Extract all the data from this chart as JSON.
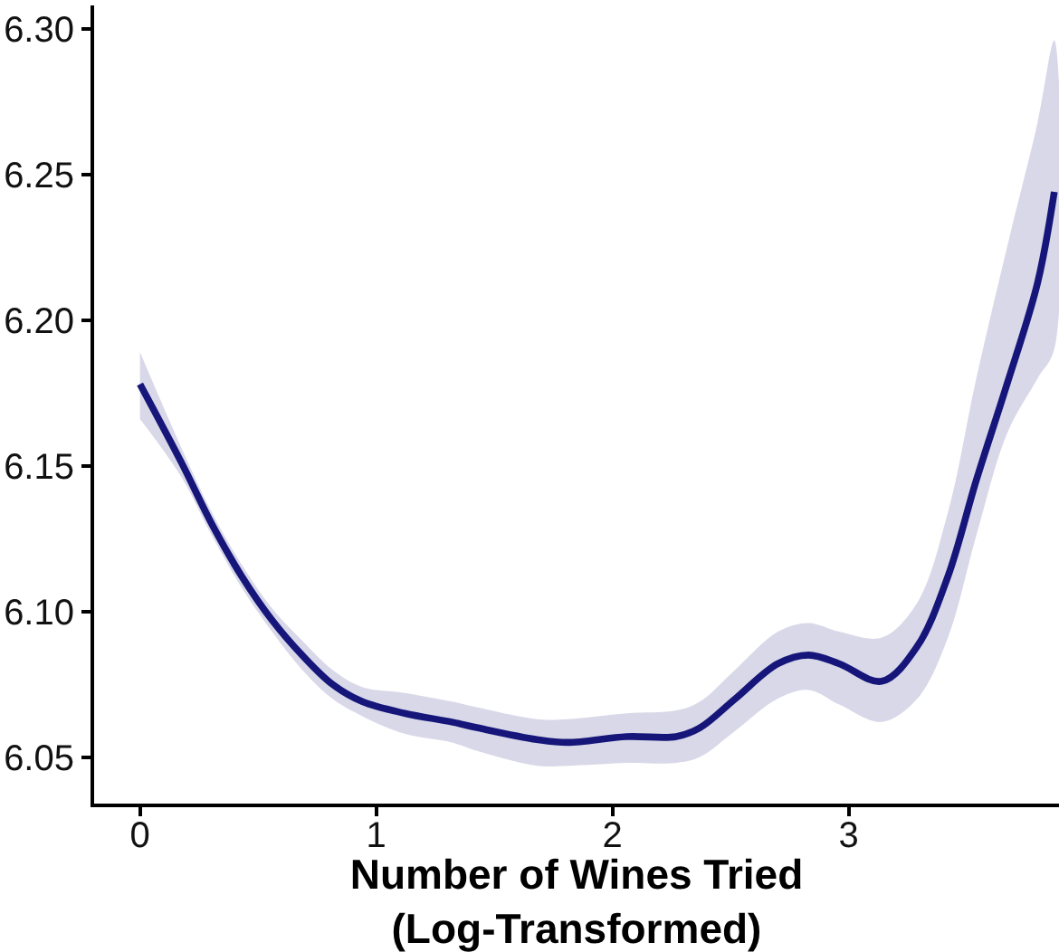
{
  "chart_data": {
    "type": "line",
    "xlabel": "Number of Wines Tried\n(Log-Transformed)",
    "x": [
      0.0,
      0.176,
      0.304,
      0.431,
      0.559,
      0.686,
      0.814,
      0.941,
      1.12,
      1.32,
      1.43,
      1.68,
      1.81,
      2.06,
      2.27,
      2.37,
      2.52,
      2.7,
      2.83,
      2.96,
      3.14,
      3.29,
      3.42,
      3.54,
      3.67,
      3.8,
      3.87
    ],
    "series": [
      {
        "color": "#16167a",
        "line_style": "solid",
        "values": [
          6.178,
          6.151,
          6.13,
          6.112,
          6.097,
          6.085,
          6.075,
          6.069,
          6.065,
          6.062,
          6.06,
          6.056,
          6.055,
          6.057,
          6.057,
          6.06,
          6.07,
          6.082,
          6.085,
          6.082,
          6.076,
          6.088,
          6.112,
          6.145,
          6.178,
          6.213,
          6.244
        ],
        "lower": [
          6.166,
          6.146,
          6.126,
          6.108,
          6.093,
          6.08,
          6.07,
          6.064,
          6.058,
          6.055,
          6.052,
          6.047,
          6.047,
          6.048,
          6.048,
          6.05,
          6.059,
          6.07,
          6.073,
          6.068,
          6.062,
          6.07,
          6.091,
          6.126,
          6.161,
          6.18,
          6.19
        ],
        "upper": [
          6.189,
          6.156,
          6.134,
          6.116,
          6.101,
          6.09,
          6.08,
          6.074,
          6.072,
          6.069,
          6.067,
          6.063,
          6.063,
          6.065,
          6.066,
          6.069,
          6.08,
          6.093,
          6.096,
          6.093,
          6.091,
          6.103,
          6.134,
          6.18,
          6.225,
          6.268,
          6.296
        ]
      }
    ],
    "xlim": [
      -0.194,
      3.89
    ],
    "xticks": [
      0,
      1,
      2,
      3
    ],
    "ylim": [
      6.034,
      6.308
    ],
    "yticks": [
      6.05,
      {
        "value": 6.1,
        "label": "6.10"
      },
      6.15,
      {
        "value": 6.2,
        "label": "6.20"
      },
      6.25,
      {
        "value": 6.3,
        "label": "6.30"
      }
    ]
  }
}
